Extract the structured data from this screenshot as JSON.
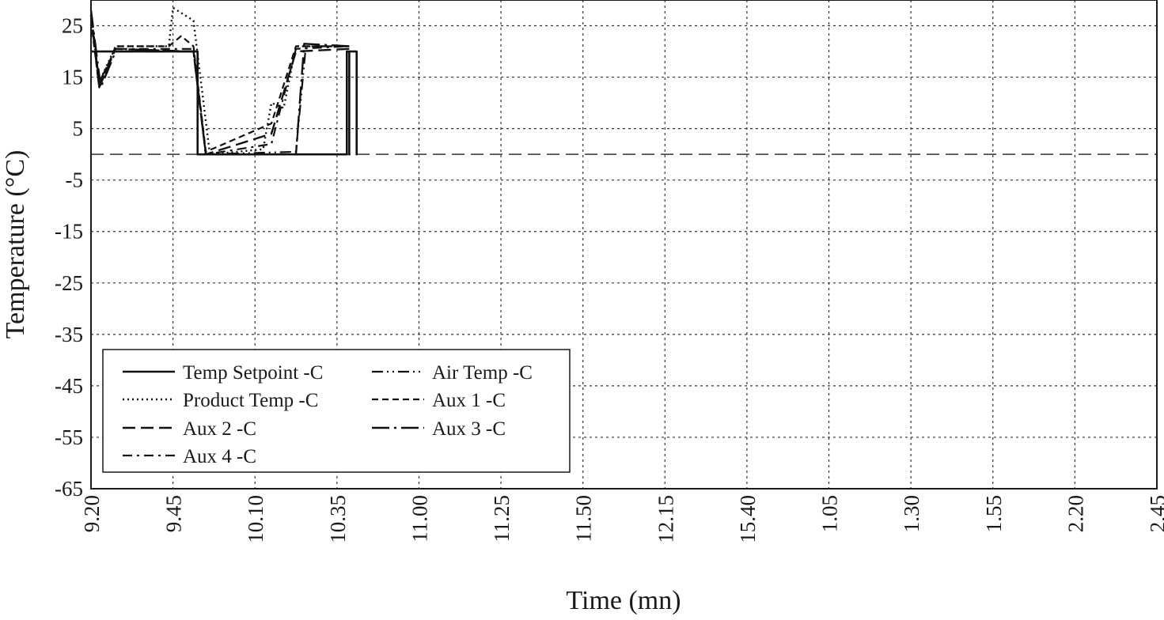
{
  "chart_data": {
    "type": "line",
    "xlabel": "Time (mn)",
    "ylabel": "Temperature (°C)",
    "x_tick_labels": [
      "9.20",
      "9.45",
      "10.10",
      "10.35",
      "11.00",
      "11.25",
      "11.50",
      "12.15",
      "15.40",
      "1.05",
      "1.30",
      "1.55",
      "2.20",
      "2.45"
    ],
    "xlim": [
      0,
      13
    ],
    "y_ticks": [
      25,
      15,
      5,
      -5,
      -15,
      -25,
      -35,
      -45,
      -55,
      -65
    ],
    "ylim": [
      -65,
      30
    ],
    "grid": true,
    "reference_line_y": 0,
    "legend_position": "bottom-left",
    "series": [
      {
        "name": "Temp Setpoint -C",
        "style": "solid",
        "points": [
          [
            0,
            20
          ],
          [
            1.3,
            20
          ],
          [
            1.3,
            0
          ],
          [
            3.12,
            0
          ],
          [
            3.12,
            20
          ],
          [
            3.15,
            20
          ],
          [
            3.15,
            0
          ],
          [
            3.15,
            20
          ],
          [
            3.2,
            20
          ],
          [
            3.2,
            20
          ],
          [
            3.17,
            20
          ],
          [
            3.24,
            20
          ],
          [
            3.24,
            0
          ],
          [
            3.24,
            20
          ],
          [
            3.2,
            20
          ],
          [
            3.2,
            20
          ],
          [
            3.2,
            20
          ],
          [
            3.2,
            20
          ],
          [
            3.2,
            20
          ],
          [
            3.2,
            20
          ],
          [
            3.2,
            20
          ],
          [
            3.2,
            20
          ],
          [
            3.2,
            20
          ],
          [
            3.2,
            20
          ],
          [
            3.2,
            20
          ]
        ]
      },
      {
        "name": "Product Temp -C",
        "style": "dotted",
        "points": [
          [
            0,
            27
          ],
          [
            0.1,
            14
          ],
          [
            0.3,
            21
          ],
          [
            0.95,
            21
          ],
          [
            1.0,
            28.5
          ],
          [
            1.25,
            26
          ],
          [
            1.45,
            0
          ],
          [
            2.1,
            1
          ],
          [
            2.2,
            10
          ],
          [
            2.35,
            9
          ],
          [
            2.5,
            21
          ],
          [
            3.15,
            21
          ]
        ]
      },
      {
        "name": "Air Temp -C",
        "style": "dash-dot-dot",
        "points": [
          [
            0,
            28
          ],
          [
            0.1,
            14
          ],
          [
            0.3,
            20.5
          ],
          [
            1.25,
            20
          ],
          [
            1.4,
            0
          ],
          [
            2.5,
            0.5
          ],
          [
            2.62,
            21
          ],
          [
            3.15,
            21
          ]
        ]
      },
      {
        "name": "Aux 1 -C",
        "style": "short-dash",
        "points": [
          [
            0,
            26
          ],
          [
            0.1,
            13
          ],
          [
            0.3,
            21
          ],
          [
            0.95,
            21
          ],
          [
            1.1,
            23
          ],
          [
            1.25,
            21
          ],
          [
            1.4,
            0.5
          ],
          [
            2.2,
            6
          ],
          [
            2.5,
            21
          ],
          [
            3.15,
            21
          ]
        ]
      },
      {
        "name": "Aux 2 -C",
        "style": "long-dash",
        "points": [
          [
            0,
            27
          ],
          [
            0.1,
            13
          ],
          [
            0.3,
            20.5
          ],
          [
            1.25,
            20
          ],
          [
            1.4,
            0
          ],
          [
            2.2,
            4
          ],
          [
            2.5,
            20
          ],
          [
            3.15,
            20.5
          ]
        ]
      },
      {
        "name": "Aux 3 -C",
        "style": "long-dash-dot",
        "points": [
          [
            0,
            28
          ],
          [
            0.12,
            13
          ],
          [
            0.3,
            20
          ],
          [
            1.25,
            20
          ],
          [
            1.4,
            0
          ],
          [
            2.5,
            0
          ],
          [
            2.6,
            21.5
          ],
          [
            3.15,
            21
          ]
        ]
      },
      {
        "name": "Aux 4 -C",
        "style": "dash-dot",
        "points": [
          [
            0,
            27
          ],
          [
            0.1,
            14
          ],
          [
            0.3,
            20.5
          ],
          [
            1.25,
            20.5
          ],
          [
            1.4,
            0
          ],
          [
            2.2,
            2
          ],
          [
            2.5,
            20.5
          ],
          [
            3.15,
            21
          ]
        ]
      }
    ]
  }
}
